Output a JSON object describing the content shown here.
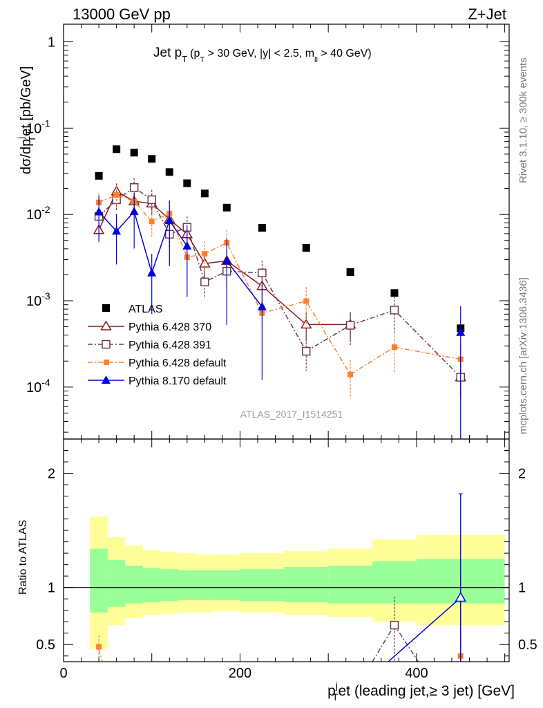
{
  "header": {
    "left": "13000 GeV pp",
    "right": "Z+Jet"
  },
  "side_text": {
    "rivet": "Rivet 3.1.10, ≥ 300k events",
    "mcplots": "mcplots.cern.ch [arXiv:1306.3436]"
  },
  "watermark": "ATLAS_2017_I1514251",
  "title": {
    "main": "Jet p",
    "main_sub": "T",
    "cuts_a": "(p",
    "cuts_a_sub": "T",
    "cuts_b": " > 30 GeV, |y| < 2.5, m",
    "cuts_b_sub": "ll",
    "cuts_c": " > 40 GeV)"
  },
  "axes": {
    "top_ylabel": "dσ/dp",
    "top_ylabel_sup": "j",
    "top_ylabel_sub": "T",
    "top_ylabel_rest": "et [pb/GeV]",
    "ratio_ylabel": "Ratio to ATLAS",
    "xlabel": "p",
    "xlabel_sup": "j",
    "xlabel_sub": "T",
    "xlabel_rest": "et (leading jet,≥ 3 jet) [GeV]",
    "x_ticks": [
      "0",
      "200",
      "400"
    ],
    "top_y_ticks": [
      "1",
      "10",
      "10",
      "10",
      "10"
    ],
    "top_y_tick_exps": [
      "",
      "-1",
      "-2",
      "-3",
      "-4"
    ],
    "ratio_y_ticks": [
      "0.5",
      "1",
      "2"
    ]
  },
  "legend": {
    "atlas": "ATLAS",
    "p370": "Pythia 6.428 370",
    "p391": "Pythia 6.428 391",
    "pdef6": "Pythia 6.428 default",
    "pdef8": "Pythia 8.170 default"
  },
  "colors": {
    "atlas": "#000000",
    "p370": "#8b1a1a",
    "p391": "#6b3a4a",
    "pdef6": "#ff7f2a",
    "pdef8": "#0000dd",
    "band_inner": "#99ff99",
    "band_outer": "#ffff99"
  },
  "chart_data": {
    "type": "scatter",
    "log_y": true,
    "xlim": [
      0,
      505
    ],
    "ylim": [
      2.5e-05,
      1.6
    ],
    "ratio_ylim": [
      0.35,
      2.3
    ],
    "x": [
      40,
      60,
      80,
      100,
      120,
      140,
      160,
      185,
      225,
      275,
      325,
      375,
      450
    ],
    "x_edges": [
      30,
      50,
      70,
      90,
      110,
      130,
      150,
      170,
      200,
      250,
      300,
      350,
      400,
      500
    ],
    "series": [
      {
        "name": "ATLAS",
        "values": [
          0.028,
          0.057,
          0.052,
          0.044,
          0.031,
          0.023,
          0.0175,
          0.012,
          0.007,
          0.0041,
          0.00215,
          0.00123,
          0.00048
        ]
      },
      {
        "name": "Pythia 6.428 370",
        "values": [
          0.0066,
          0.0185,
          0.0142,
          0.0134,
          0.0088,
          0.0059,
          0.0027,
          0.0029,
          0.00148,
          0.00053,
          0.00053,
          null,
          0.00013
        ]
      },
      {
        "name": "Pythia 6.428 391",
        "values": [
          0.0095,
          0.0148,
          0.0205,
          0.0148,
          0.0059,
          0.0071,
          0.00165,
          0.0022,
          0.0021,
          0.00026,
          0.00052,
          0.00078,
          0.00013
        ]
      },
      {
        "name": "Pythia 6.428 default",
        "values": [
          0.0138,
          0.0168,
          0.0142,
          0.0083,
          0.0102,
          0.0032,
          0.0035,
          0.0047,
          0.00072,
          0.00099,
          0.00014,
          0.00029,
          0.00021
        ]
      },
      {
        "name": "Pythia 8.170 default",
        "values": [
          0.0107,
          0.0064,
          0.0108,
          0.0021,
          0.0085,
          0.0043,
          null,
          0.0029,
          0.00085,
          null,
          null,
          null,
          0.00043
        ]
      }
    ],
    "ratio": {
      "inner_band": [
        [
          0.78,
          1.34
        ],
        [
          0.83,
          1.24
        ],
        [
          0.86,
          1.19
        ],
        [
          0.87,
          1.17
        ],
        [
          0.88,
          1.16
        ],
        [
          0.89,
          1.15
        ],
        [
          0.89,
          1.15
        ],
        [
          0.89,
          1.15
        ],
        [
          0.88,
          1.16
        ],
        [
          0.87,
          1.18
        ],
        [
          0.86,
          1.19
        ],
        [
          0.86,
          1.23
        ],
        [
          0.86,
          1.25
        ]
      ],
      "outer_band": [
        [
          0.46,
          1.62
        ],
        [
          0.67,
          1.44
        ],
        [
          0.73,
          1.37
        ],
        [
          0.76,
          1.33
        ],
        [
          0.77,
          1.31
        ],
        [
          0.78,
          1.3
        ],
        [
          0.78,
          1.29
        ],
        [
          0.79,
          1.29
        ],
        [
          0.78,
          1.3
        ],
        [
          0.76,
          1.32
        ],
        [
          0.74,
          1.34
        ],
        [
          0.7,
          1.42
        ],
        [
          0.67,
          1.46
        ]
      ],
      "p391_point": {
        "x": 375,
        "y": 0.67
      },
      "pdef6_points": [
        {
          "x": 40,
          "y": 0.48
        },
        {
          "x": 450,
          "y": 0.4
        }
      ],
      "pdef8_point": {
        "x": 450,
        "y": 0.91
      }
    }
  }
}
